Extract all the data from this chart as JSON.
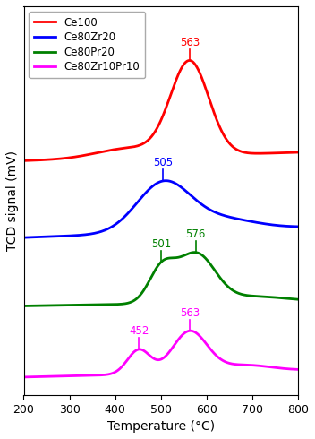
{
  "title": "",
  "xlabel": "Temperature (°C)",
  "ylabel": "TCD signal (mV)",
  "xlim": [
    200,
    800
  ],
  "xticks": [
    200,
    300,
    400,
    500,
    600,
    700,
    800
  ],
  "series": [
    {
      "label": "Ce100",
      "color": "#ff0000",
      "peaks": [
        {
          "x": 563,
          "label": "563"
        }
      ]
    },
    {
      "label": "Ce80Zr20",
      "color": "#0000ff",
      "peaks": [
        {
          "x": 505,
          "label": "505"
        }
      ]
    },
    {
      "label": "Ce80Pr20",
      "color": "#008000",
      "peaks": [
        {
          "x": 501,
          "label": "501"
        },
        {
          "x": 576,
          "label": "576"
        }
      ]
    },
    {
      "label": "Ce80Zr10Pr10",
      "color": "#ff00ff",
      "peaks": [
        {
          "x": 452,
          "label": "452"
        },
        {
          "x": 563,
          "label": "563"
        }
      ]
    }
  ],
  "background_color": "#ffffff",
  "legend_fontsize": 8.5,
  "axis_fontsize": 10,
  "tick_fontsize": 9
}
